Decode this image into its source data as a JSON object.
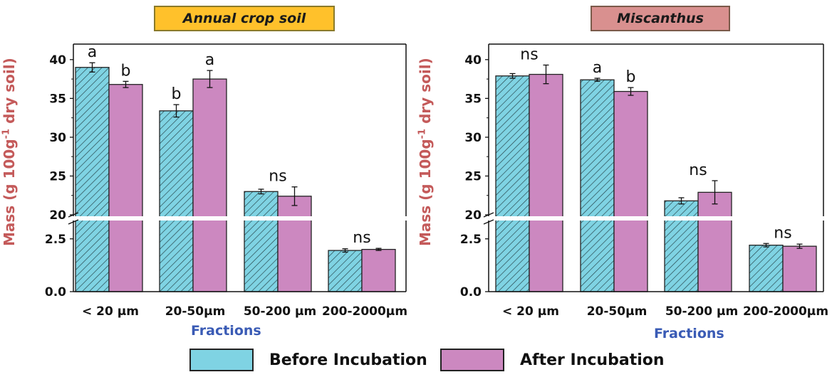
{
  "chart_data": [
    {
      "type": "bar",
      "title": "Annual crop soil",
      "title_color": "#ffc12b",
      "xlabel": "Fractions",
      "ylabel": "Mass (g 100g-1 dry soil)",
      "categories": [
        "< 20 µm",
        "20-50µm",
        "50-200 µm",
        "200-2000µm"
      ],
      "y_axis": "broken",
      "ylim_lower": [
        0,
        3.3
      ],
      "ylim_upper": [
        20,
        42
      ],
      "yticks_upper": [
        "20",
        "25",
        "30",
        "35",
        "40"
      ],
      "yticks_lower": [
        "0.0",
        "2.5"
      ],
      "series": [
        {
          "name": "Before Incubation",
          "values": [
            39.0,
            33.4,
            23.0,
            1.95
          ],
          "errors": [
            0.6,
            0.8,
            0.3,
            0.08
          ]
        },
        {
          "name": "After Incubation",
          "values": [
            36.8,
            37.5,
            22.4,
            2.0
          ],
          "errors": [
            0.4,
            1.1,
            1.2,
            0.05
          ]
        }
      ],
      "annotations": [
        {
          "category": 0,
          "series": 0,
          "text": "a"
        },
        {
          "category": 0,
          "series": 1,
          "text": "b"
        },
        {
          "category": 1,
          "series": 0,
          "text": "b"
        },
        {
          "category": 1,
          "series": 1,
          "text": "a"
        },
        {
          "category": 2,
          "series": -1,
          "text": "ns"
        },
        {
          "category": 3,
          "series": -1,
          "text": "ns"
        }
      ]
    },
    {
      "type": "bar",
      "title": "Miscanthus",
      "title_color": "#d9908f",
      "xlabel": "Fractions",
      "ylabel": "Mass (g 100g-1 dry soil)",
      "categories": [
        "< 20 µm",
        "20-50µm",
        "50-200 µm",
        "200-2000µm"
      ],
      "y_axis": "broken",
      "ylim_lower": [
        0,
        3.3
      ],
      "ylim_upper": [
        20,
        42
      ],
      "yticks_upper": [
        "20",
        "25",
        "30",
        "35",
        "40"
      ],
      "yticks_lower": [
        "0.0",
        "2.5"
      ],
      "series": [
        {
          "name": "Before Incubation",
          "values": [
            37.9,
            37.4,
            21.8,
            2.2
          ],
          "errors": [
            0.3,
            0.2,
            0.4,
            0.08
          ]
        },
        {
          "name": "After Incubation",
          "values": [
            38.1,
            35.9,
            22.9,
            2.15
          ],
          "errors": [
            1.2,
            0.5,
            1.5,
            0.1
          ]
        }
      ],
      "annotations": [
        {
          "category": 0,
          "series": -1,
          "text": "ns"
        },
        {
          "category": 1,
          "series": 0,
          "text": "a"
        },
        {
          "category": 1,
          "series": 1,
          "text": "b"
        },
        {
          "category": 2,
          "series": -1,
          "text": "ns"
        },
        {
          "category": 3,
          "series": -1,
          "text": "ns"
        }
      ]
    }
  ],
  "legend": {
    "before_label": "Before Incubation",
    "after_label": "After Incubation",
    "before_color": "#7fd3e3",
    "after_color": "#cc88c0"
  }
}
